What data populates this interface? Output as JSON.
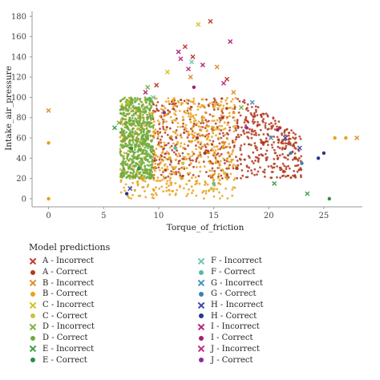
{
  "chart_data": {
    "type": "scatter",
    "title": "",
    "xlabel": "Torque_of_friction",
    "ylabel": "Intake_air_pressure",
    "xlim": [
      -1.5,
      28.5
    ],
    "ylim": [
      -8,
      185
    ],
    "xticks": [
      0,
      5,
      10,
      15,
      20,
      25
    ],
    "yticks": [
      0,
      20,
      40,
      60,
      80,
      100,
      120,
      140,
      160,
      180
    ],
    "grid": false,
    "legend_position": "bottom",
    "legend_title": "Model predictions",
    "series": [
      {
        "name": "A - Incorrect",
        "marker": "x",
        "color": "#c0392b",
        "x": [
          12.4,
          13.1,
          9.8,
          16.2,
          14.7
        ],
        "y": [
          150,
          140,
          112,
          118,
          175
        ]
      },
      {
        "name": "A - Correct",
        "marker": "o",
        "color": "#b03a1e",
        "region": {
          "x": [
            9.5,
            23.0
          ],
          "y": [
            20,
            100
          ]
        },
        "x": [
          13.5,
          14.2,
          15.8,
          17.1,
          19.5,
          21.0,
          22.4
        ],
        "y": [
          60,
          45,
          80,
          30,
          55,
          70,
          40
        ]
      },
      {
        "name": "B - Incorrect",
        "marker": "x",
        "color": "#e08e2b",
        "x": [
          0.0,
          15.3,
          16.8,
          12.9,
          28.0
        ],
        "y": [
          87,
          130,
          105,
          120,
          60
        ]
      },
      {
        "name": "B - Correct",
        "marker": "o",
        "color": "#e8a21c",
        "region": {
          "x": [
            6.5,
            17.0
          ],
          "y": [
            0,
            100
          ]
        },
        "x": [
          0.0,
          0.0,
          26.0,
          27.0,
          8.5,
          11.0
        ],
        "y": [
          0,
          55,
          60,
          60,
          20,
          40
        ]
      },
      {
        "name": "C - Incorrect",
        "marker": "x",
        "color": "#d4c21f",
        "x": [
          10.8,
          13.6,
          7.2
        ],
        "y": [
          125,
          172,
          95
        ]
      },
      {
        "name": "C - Correct",
        "marker": "o",
        "color": "#c9c43a",
        "x": [
          12.2,
          14.8,
          16.0
        ],
        "y": [
          35,
          10,
          25
        ]
      },
      {
        "name": "D - Incorrect",
        "marker": "x",
        "color": "#7fb241",
        "x": [
          9.0,
          17.5,
          6.4
        ],
        "y": [
          110,
          90,
          75
        ]
      },
      {
        "name": "D - Correct",
        "marker": "o",
        "color": "#6dab3a",
        "region": {
          "x": [
            6.5,
            9.5
          ],
          "y": [
            20,
            100
          ]
        },
        "x": [
          7.0,
          8.0,
          9.0
        ],
        "y": [
          60,
          40,
          80
        ]
      },
      {
        "name": "E - Incorrect",
        "marker": "x",
        "color": "#3f9e4a",
        "x": [
          6.0,
          23.5,
          20.5
        ],
        "y": [
          70,
          5,
          15
        ]
      },
      {
        "name": "E - Correct",
        "marker": "o",
        "color": "#2f8f3d",
        "x": [
          7.5,
          8.2,
          25.5
        ],
        "y": [
          50,
          30,
          0
        ]
      },
      {
        "name": "F - Incorrect",
        "marker": "x",
        "color": "#6fc7b4",
        "x": [
          13.0,
          9.5
        ],
        "y": [
          135,
          100
        ]
      },
      {
        "name": "F - Correct",
        "marker": "o",
        "color": "#58b7a6",
        "x": [
          11.5,
          15.0
        ],
        "y": [
          50,
          15
        ]
      },
      {
        "name": "G - Incorrect",
        "marker": "x",
        "color": "#4c8fc4",
        "x": [
          18.5,
          20.2
        ],
        "y": [
          95,
          60
        ]
      },
      {
        "name": "G - Correct",
        "marker": "o",
        "color": "#3b7fb8",
        "x": [
          22.0,
          23.0
        ],
        "y": [
          45,
          35
        ]
      },
      {
        "name": "H - Incorrect",
        "marker": "x",
        "color": "#3b4aa8",
        "x": [
          7.4,
          21.5,
          22.8
        ],
        "y": [
          10,
          60,
          50
        ]
      },
      {
        "name": "H - Correct",
        "marker": "o",
        "color": "#2b3490",
        "x": [
          24.5,
          25.0,
          7.1
        ],
        "y": [
          40,
          45,
          5
        ]
      },
      {
        "name": "I - Incorrect",
        "marker": "x",
        "color": "#b0277f",
        "x": [
          11.8,
          12.7,
          14.0,
          16.5,
          8.8
        ],
        "y": [
          145,
          128,
          132,
          155,
          105
        ]
      },
      {
        "name": "I - Correct",
        "marker": "o",
        "color": "#a31d6e",
        "x": [
          13.2,
          20.8
        ],
        "y": [
          110,
          68
        ]
      },
      {
        "name": "J - Incorrect",
        "marker": "x",
        "color": "#c12c8a",
        "x": [
          12.0,
          15.9
        ],
        "y": [
          138,
          114
        ]
      },
      {
        "name": "J - Correct",
        "marker": "o",
        "color": "#8e2b9c",
        "x": [
          10.5,
          18.0
        ],
        "y": [
          85,
          70
        ]
      }
    ]
  }
}
